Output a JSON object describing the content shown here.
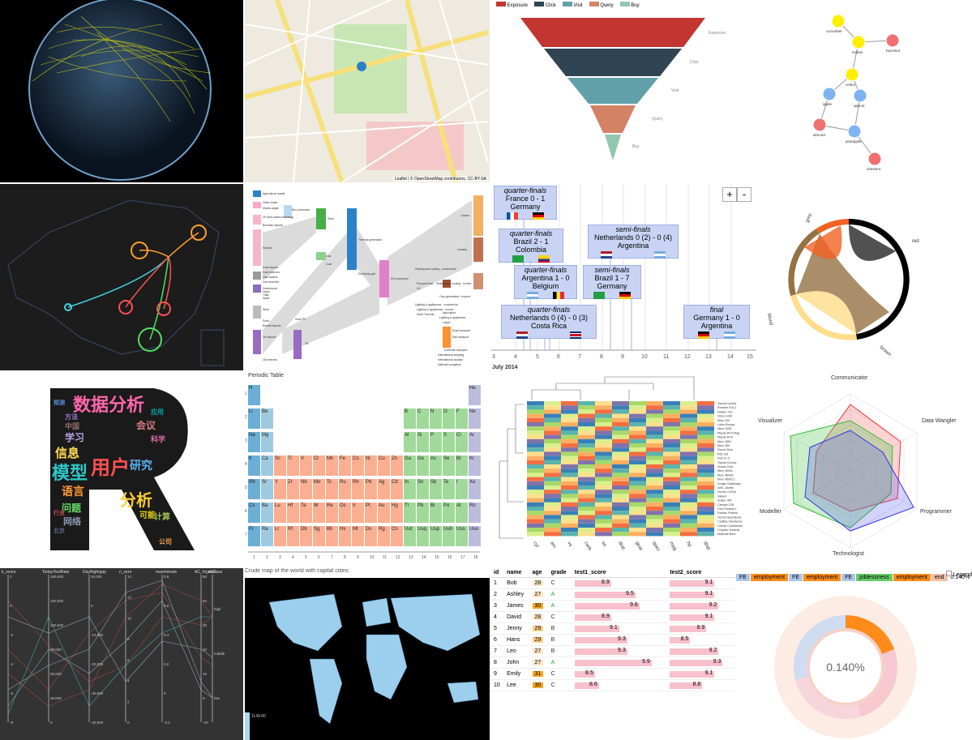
{
  "funnel": {
    "legend": [
      "Exposure",
      "Click",
      "Visit",
      "Query",
      "Buy"
    ],
    "colors": [
      "#c23531",
      "#2f4554",
      "#61a0a8",
      "#d48265",
      "#91c7ae"
    ]
  },
  "network": {
    "nodes": [
      {
        "label": "cucumber",
        "c": "#ffee00"
      },
      {
        "label": "endive",
        "c": "#ffee00"
      },
      {
        "label": "hazelnut",
        "c": "#f07070"
      },
      {
        "label": "celery",
        "c": "#ffee00"
      },
      {
        "label": "apple",
        "c": "#7fb2f0"
      },
      {
        "label": "apricot",
        "c": "#7fb2f0"
      },
      {
        "label": "almond",
        "c": "#f07070"
      },
      {
        "label": "pineapple",
        "c": "#7fb2f0"
      },
      {
        "label": "chestnut",
        "c": "#f07070"
      }
    ]
  },
  "map_attribution": "Leaflet | © OpenStreetMap contributors, CC-BY-SA",
  "sankey_labels": [
    "Agricultural 'waste'",
    "Other waste",
    "Marine algae",
    "UK land based bioenergy",
    "Biomass imports",
    "Bio-conversion",
    "Solid",
    "Thermal generation",
    "Nuclear",
    "Losses",
    "Industry",
    "Coal imports",
    "Coal reserves",
    "Coal",
    "Gas imports",
    "Gas reserves",
    "Geothermal",
    "Hydro",
    "Tidal",
    "Wave",
    "Wind",
    "Solar",
    "Biofuel imports",
    "Oil imports",
    "Oil reserves",
    "Gas",
    "Electricity grid",
    "H2 conversion",
    "Liquid",
    "Oil",
    "Solar PV",
    "Domestic transport",
    "Road transport",
    "Heating and cooling - commercial",
    "Heating and cooling - homes",
    "Over generation / exports",
    "Lighting & appliances - commercial",
    "Lighting & appliances - homes",
    "Solar Thermal",
    "Pumped heat",
    "H2",
    "Agriculture",
    "Rail transport",
    "Lighting & appliances",
    "International shipping",
    "International aviation",
    "National navigation"
  ],
  "timeline": {
    "matches": [
      {
        "stage": "quarter-finals",
        "result": "France 0 - 1 Germany"
      },
      {
        "stage": "quarter-finals",
        "result": "Brazil 2 - 1 Colombia"
      },
      {
        "stage": "quarter-finals",
        "result": "Argentina 1 - 0 Belgium"
      },
      {
        "stage": "quarter-finals",
        "result": "Netherlands 0 (4) - 0 (3) Costa Rica"
      },
      {
        "stage": "semi-finals",
        "result": "Netherlands 0 (2) - 0 (4) Argentina"
      },
      {
        "stage": "semi-finals",
        "result": "Brazil 1 - 7 Germany"
      },
      {
        "stage": "final",
        "result": "Germany 1 - 0 Argentina"
      }
    ],
    "ticks": [
      "3",
      "4",
      "5",
      "6",
      "7",
      "8",
      "9",
      "10",
      "11",
      "12",
      "13",
      "14",
      "15"
    ],
    "month": "July 2014",
    "zoom_in": "+",
    "zoom_out": "-"
  },
  "chord_labels": [
    "grey",
    "red",
    "brown",
    "blond"
  ],
  "wordcloud_words": [
    "数据分析",
    "模型",
    "用户",
    "分析",
    "研究",
    "信息",
    "学习",
    "语言",
    "问题",
    "会议",
    "网络",
    "可能",
    "计算",
    "中国",
    "科学",
    "应用",
    "方法",
    "预测",
    "公司",
    "行业",
    "北京"
  ],
  "periodic": {
    "title": "Periodic Table",
    "symbols": [
      "H",
      "He",
      "Li",
      "Be",
      "B",
      "C",
      "N",
      "O",
      "F",
      "Ne",
      "Na",
      "Mg",
      "Al",
      "Si",
      "P",
      "S",
      "Cl",
      "Ar",
      "K",
      "Ca",
      "Sc",
      "Ti",
      "V",
      "Cr",
      "Mn",
      "Fe",
      "Co",
      "Ni",
      "Cu",
      "Zn",
      "Ga",
      "Ge",
      "As",
      "Se",
      "Br",
      "Kr",
      "Rb",
      "Sr",
      "Y",
      "Zr",
      "Nb",
      "Mo",
      "Tc",
      "Ru",
      "Rh",
      "Pd",
      "Ag",
      "Cd",
      "In",
      "Sn",
      "Sb",
      "Te",
      "I",
      "Xe",
      "Cs",
      "Ba",
      "Lu",
      "Hf",
      "Ta",
      "W",
      "Re",
      "Os",
      "Ir",
      "Pt",
      "Au",
      "Hg",
      "Tl",
      "Pb",
      "Bi",
      "Po",
      "At",
      "Rn",
      "Fr",
      "Ra",
      "Lr",
      "Rf",
      "Db",
      "Sg",
      "Bh",
      "Hs",
      "Mt",
      "Ds",
      "Rg",
      "Cn",
      "Uut",
      "Uuq",
      "Uup",
      "Uuh",
      "Uus",
      "Uuo"
    ],
    "xticks": [
      "1",
      "2",
      "3",
      "4",
      "5",
      "6",
      "7",
      "8",
      "9",
      "10",
      "11",
      "12",
      "13",
      "14",
      "15",
      "16",
      "17",
      "18"
    ],
    "yticks": [
      "1",
      "2",
      "3",
      "4",
      "5",
      "6",
      "7"
    ]
  },
  "heatmap": {
    "cols": [
      "cyl",
      "am",
      "vs",
      "carb",
      "wt",
      "drat",
      "gear",
      "qsec",
      "mpg",
      "hp",
      "disp"
    ],
    "rows": [
      "Toyota Corolla",
      "Porsche 914-2",
      "Datsun 710",
      "Volvo 142E",
      "Merc 230",
      "Lotus Europa",
      "Merc 240D",
      "Mazda RX4 Wag",
      "Mazda RX4",
      "Merc 280C",
      "Merc 280",
      "Ferrari Dino",
      "Fiat 128",
      "Fiat X1-9",
      "Toyota Corona",
      "Honda Civic",
      "Merc 450SL",
      "Merc 450SE",
      "Merc 450SLC",
      "Dodge Challenger",
      "AMC Javelin",
      "Hornet 4 Drive",
      "Valiant",
      "Duster 360",
      "Camaro Z28",
      "Ford Pantera L",
      "Pontiac Firebird",
      "Hornet Sportabout",
      "Cadillac Fleetwood",
      "Lincoln Continental",
      "Chrysler Imperial",
      "Maserati Bora"
    ]
  },
  "radar": {
    "axes": [
      "Communicator",
      "Data Wangler",
      "Programmer",
      "Technologist",
      "Modeller",
      "Visualizer"
    ]
  },
  "parallel": {
    "dims": [
      "k_score",
      "TodayYestRate",
      "DayNightgap",
      "n_zero",
      "maxminrate",
      "AC_hr_max",
      "riskClass"
    ],
    "scales": [
      [
        "2",
        "0",
        "-2",
        "-4",
        "-6",
        "-8"
      ],
      [
        "180,000",
        "150,000",
        "120,000",
        "90,000",
        "60,000",
        "30,000",
        "0"
      ],
      [
        "10,000",
        "0",
        "-10,000",
        "-20,000",
        "-30,000",
        "-40,000"
      ],
      [
        "14",
        "12",
        "10",
        "8",
        "6",
        "4",
        "2",
        "0"
      ],
      [
        "0.8",
        "0.6",
        "0.4",
        "0.2",
        "0",
        "-0.2"
      ],
      [
        "50",
        "40",
        "30",
        "20",
        "10",
        "0",
        "-10"
      ],
      [
        "high",
        "middle",
        "low"
      ]
    ]
  },
  "worldmap": {
    "title": "Crude map of the world with capital cities:",
    "slider_label": "1149:00"
  },
  "scoretable": {
    "headers": [
      "id",
      "name",
      "age",
      "grade",
      "test1_score",
      "test2_score"
    ],
    "rows": [
      [
        "1",
        "Bob",
        "28",
        "C",
        "8.9",
        "9.1"
      ],
      [
        "2",
        "Ashley",
        "27",
        "A",
        "9.5",
        "9.1"
      ],
      [
        "3",
        "James",
        "30",
        "A",
        "9.6",
        "9.2"
      ],
      [
        "4",
        "David",
        "28",
        "C",
        "8.9",
        "9.1"
      ],
      [
        "5",
        "Jenny",
        "29",
        "B",
        "9.1",
        "8.9"
      ],
      [
        "6",
        "Hans",
        "29",
        "B",
        "9.3",
        "8.5"
      ],
      [
        "7",
        "Leo",
        "27",
        "B",
        "9.3",
        "9.2"
      ],
      [
        "8",
        "John",
        "27",
        "A",
        "9.9",
        "9.3"
      ],
      [
        "9",
        "Emily",
        "31",
        "C",
        "8.5",
        "9.1"
      ],
      [
        "10",
        "Lee",
        "30",
        "C",
        "8.6",
        "8.8"
      ]
    ]
  },
  "sunburst": {
    "breadcrumbs": [
      "FE",
      "employment",
      "FE",
      "employment",
      "FE",
      "joblessness",
      "employment",
      "end"
    ],
    "percent": "0.140%",
    "legend": "Legend"
  }
}
